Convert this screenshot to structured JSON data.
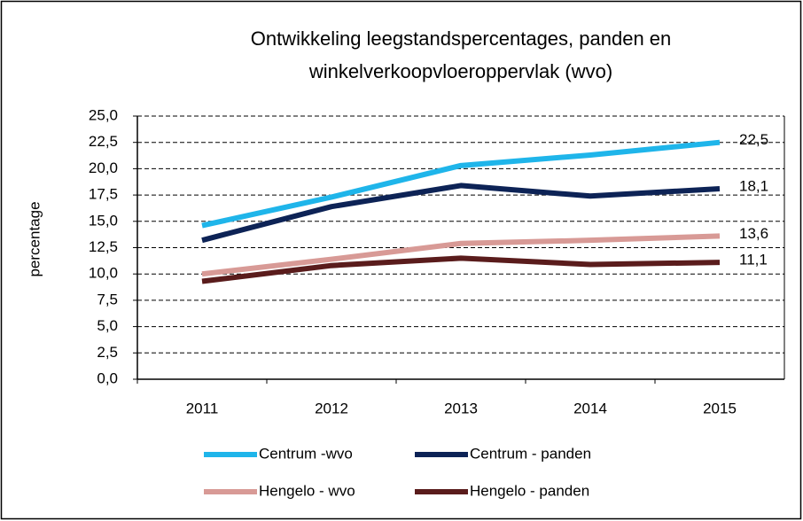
{
  "chart_data": {
    "type": "line",
    "title": [
      "Ontwikkeling leegstandspercentages, panden en",
      "winkelverkoopvloeroppervlak (wvo)"
    ],
    "y_label": "percentage",
    "categories": [
      "2011",
      "2012",
      "2013",
      "2014",
      "2015"
    ],
    "series": [
      {
        "name": "Centrum -wvo",
        "color": "#1fb5ea",
        "values": [
          14.6,
          17.3,
          20.3,
          21.3,
          22.5
        ],
        "value_labels": [
          null,
          null,
          null,
          null,
          "22,5"
        ]
      },
      {
        "name": "Centrum - panden",
        "color": "#0d2356",
        "values": [
          13.2,
          16.4,
          18.4,
          17.4,
          18.1
        ],
        "value_labels": [
          null,
          null,
          null,
          null,
          "18,1"
        ]
      },
      {
        "name": "Hengelo - wvo",
        "color": "#d89a96",
        "values": [
          10.0,
          11.4,
          12.9,
          13.2,
          13.6
        ],
        "value_labels": [
          null,
          null,
          null,
          null,
          "13,6"
        ]
      },
      {
        "name": "Hengelo - panden",
        "color": "#5a1c1c",
        "values": [
          9.3,
          10.8,
          11.5,
          10.9,
          11.1
        ],
        "value_labels": [
          null,
          null,
          null,
          null,
          "11,1"
        ]
      }
    ],
    "ylim": [
      0,
      25
    ],
    "yticks": [
      {
        "value": 0,
        "label": "0,0"
      },
      {
        "value": 2.5,
        "label": "2,5"
      },
      {
        "value": 5,
        "label": "5,0"
      },
      {
        "value": 7.5,
        "label": "7,5"
      },
      {
        "value": 10,
        "label": "10,0"
      },
      {
        "value": 12.5,
        "label": "12,5"
      },
      {
        "value": 15,
        "label": "15,0"
      },
      {
        "value": 17.5,
        "label": "17,5"
      },
      {
        "value": 20,
        "label": "20,0"
      },
      {
        "value": 22.5,
        "label": "22,5"
      },
      {
        "value": 25,
        "label": "25,0"
      }
    ],
    "grid": true
  }
}
